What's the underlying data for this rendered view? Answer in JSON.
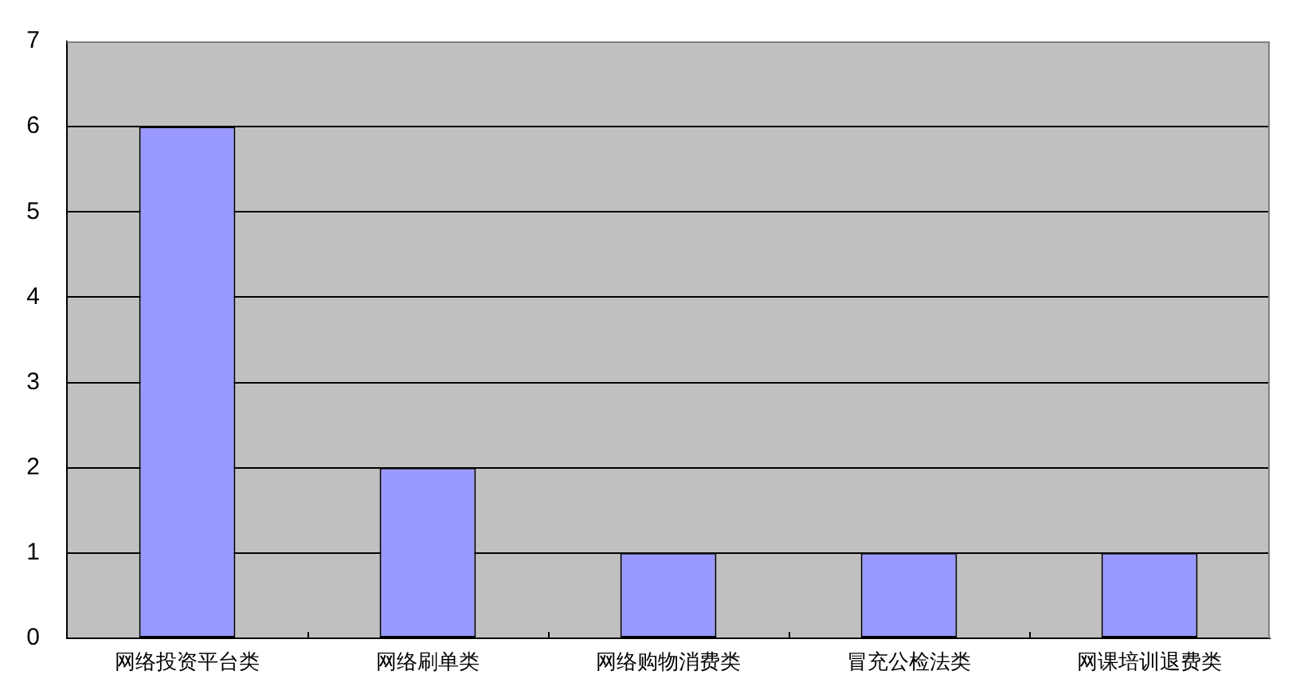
{
  "chart_data": {
    "type": "bar",
    "categories": [
      "网络投资平台类",
      "网络刷单类",
      "网络购物消费类",
      "冒充公检法类",
      "网课培训退费类"
    ],
    "values": [
      6,
      2,
      1,
      1,
      1
    ],
    "color": "#9999ff",
    "ylim": [
      0,
      7
    ],
    "yticks": [
      0,
      1,
      2,
      3,
      4,
      5,
      6,
      7
    ],
    "grid": "y"
  }
}
